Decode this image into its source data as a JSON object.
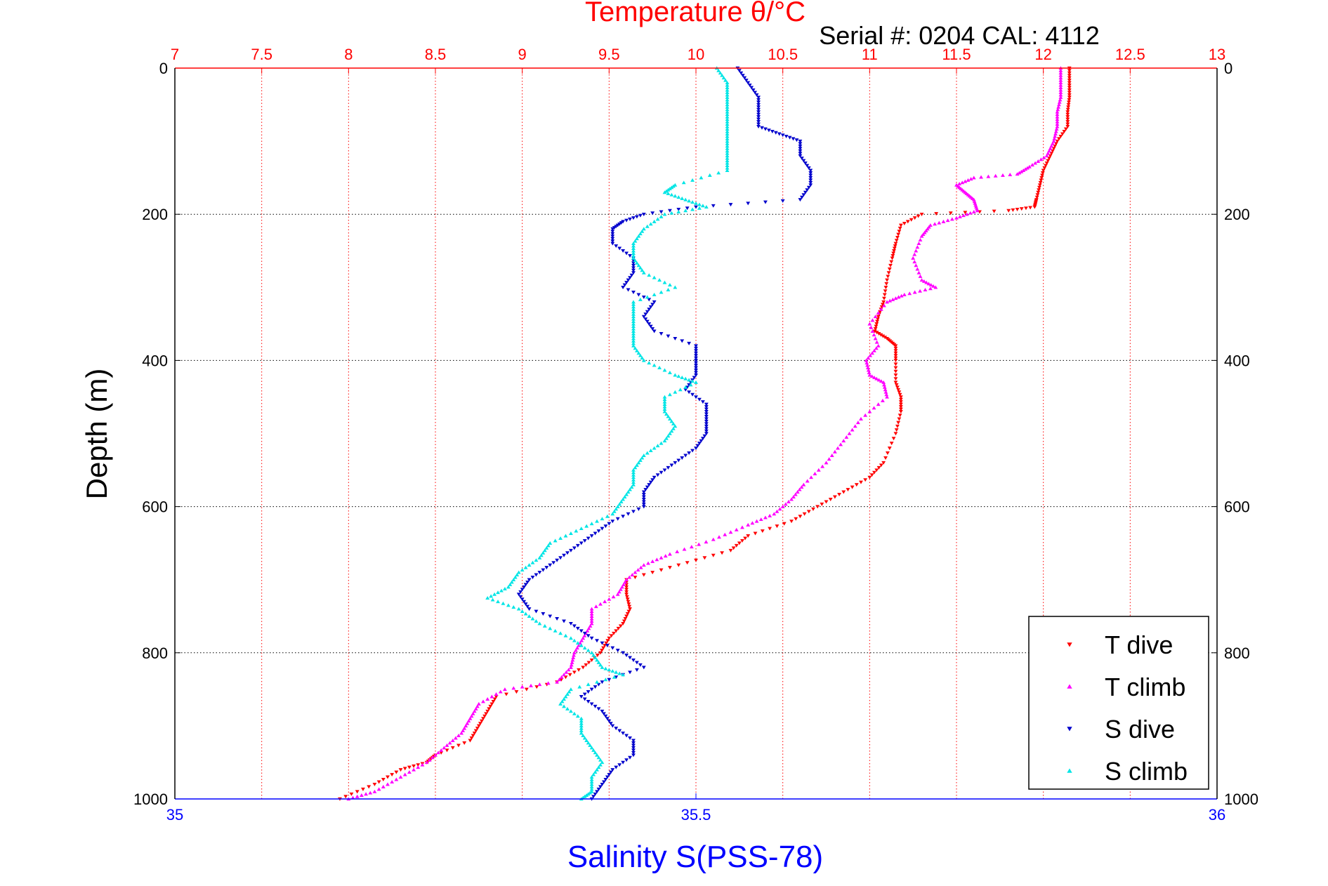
{
  "chart_data": {
    "type": "scatter",
    "title_top": "Temperature θ/°C",
    "subtitle": "Serial #: 0204  CAL: 4112",
    "xlabel_bottom": "Salinity S(PSS-78)",
    "ylabel": "Depth (m)",
    "x_top_ticks": [
      "7",
      "7.5",
      "8",
      "8.5",
      "9",
      "9.5",
      "10",
      "10.5",
      "11",
      "11.5",
      "12",
      "12.5",
      "13"
    ],
    "x_top_range": [
      7,
      13
    ],
    "x_bottom_ticks": [
      "35",
      "35.5",
      "36"
    ],
    "x_bottom_range": [
      35,
      36
    ],
    "y_ticks": [
      "0",
      "200",
      "400",
      "600",
      "800",
      "1000"
    ],
    "y_range": [
      0,
      1000
    ],
    "y_reversed": true,
    "grid": true,
    "legend_position": "bottom-right",
    "colors": {
      "t_dive": "#ff0000",
      "t_climb": "#ff00ff",
      "s_dive": "#0000cc",
      "s_climb": "#00e5e5"
    },
    "series": [
      {
        "name": "T dive",
        "axis": "top",
        "marker": "triangle-down",
        "color": "#ff0000",
        "points": [
          [
            12.15,
            0
          ],
          [
            12.15,
            20
          ],
          [
            12.15,
            40
          ],
          [
            12.14,
            60
          ],
          [
            12.14,
            80
          ],
          [
            12.08,
            100
          ],
          [
            12.04,
            120
          ],
          [
            12.0,
            140
          ],
          [
            11.98,
            160
          ],
          [
            11.96,
            180
          ],
          [
            11.95,
            190
          ],
          [
            11.8,
            195
          ],
          [
            11.3,
            200
          ],
          [
            11.18,
            215
          ],
          [
            11.15,
            240
          ],
          [
            11.13,
            260
          ],
          [
            11.1,
            290
          ],
          [
            11.08,
            320
          ],
          [
            11.05,
            340
          ],
          [
            11.03,
            360
          ],
          [
            11.1,
            370
          ],
          [
            11.15,
            380
          ],
          [
            11.15,
            400
          ],
          [
            11.15,
            430
          ],
          [
            11.18,
            450
          ],
          [
            11.18,
            470
          ],
          [
            11.15,
            500
          ],
          [
            11.08,
            540
          ],
          [
            11.0,
            560
          ],
          [
            10.85,
            580
          ],
          [
            10.7,
            600
          ],
          [
            10.55,
            620
          ],
          [
            10.3,
            640
          ],
          [
            10.2,
            660
          ],
          [
            9.9,
            680
          ],
          [
            9.6,
            700
          ],
          [
            9.6,
            720
          ],
          [
            9.62,
            740
          ],
          [
            9.58,
            760
          ],
          [
            9.5,
            780
          ],
          [
            9.45,
            800
          ],
          [
            9.35,
            820
          ],
          [
            9.2,
            840
          ],
          [
            8.85,
            860
          ],
          [
            8.8,
            880
          ],
          [
            8.75,
            900
          ],
          [
            8.7,
            920
          ],
          [
            8.5,
            940
          ],
          [
            8.45,
            950
          ],
          [
            8.3,
            960
          ],
          [
            8.15,
            980
          ],
          [
            7.95,
            1000
          ]
        ]
      },
      {
        "name": "T climb",
        "axis": "top",
        "marker": "triangle-up",
        "color": "#ff00ff",
        "points": [
          [
            12.1,
            0
          ],
          [
            12.1,
            20
          ],
          [
            12.1,
            40
          ],
          [
            12.08,
            60
          ],
          [
            12.08,
            80
          ],
          [
            12.06,
            100
          ],
          [
            12.02,
            120
          ],
          [
            11.92,
            135
          ],
          [
            11.85,
            145
          ],
          [
            11.6,
            150
          ],
          [
            11.5,
            160
          ],
          [
            11.55,
            170
          ],
          [
            11.6,
            180
          ],
          [
            11.62,
            195
          ],
          [
            11.5,
            205
          ],
          [
            11.35,
            215
          ],
          [
            11.3,
            230
          ],
          [
            11.25,
            260
          ],
          [
            11.3,
            290
          ],
          [
            11.38,
            300
          ],
          [
            11.2,
            310
          ],
          [
            11.1,
            320
          ],
          [
            11.0,
            350
          ],
          [
            11.05,
            380
          ],
          [
            10.98,
            400
          ],
          [
            11.0,
            420
          ],
          [
            11.08,
            430
          ],
          [
            11.1,
            450
          ],
          [
            10.95,
            480
          ],
          [
            10.85,
            510
          ],
          [
            10.75,
            540
          ],
          [
            10.62,
            570
          ],
          [
            10.55,
            590
          ],
          [
            10.45,
            610
          ],
          [
            10.3,
            625
          ],
          [
            10.1,
            645
          ],
          [
            9.85,
            665
          ],
          [
            9.7,
            680
          ],
          [
            9.6,
            700
          ],
          [
            9.55,
            720
          ],
          [
            9.4,
            740
          ],
          [
            9.4,
            760
          ],
          [
            9.35,
            780
          ],
          [
            9.3,
            800
          ],
          [
            9.28,
            820
          ],
          [
            9.2,
            840
          ],
          [
            8.9,
            850
          ],
          [
            8.75,
            870
          ],
          [
            8.7,
            890
          ],
          [
            8.65,
            910
          ],
          [
            8.55,
            930
          ],
          [
            8.45,
            950
          ],
          [
            8.3,
            970
          ],
          [
            8.15,
            990
          ],
          [
            8.0,
            1000
          ]
        ]
      },
      {
        "name": "S dive",
        "axis": "bottom",
        "marker": "triangle-down",
        "color": "#0000cc",
        "points": [
          [
            35.54,
            0
          ],
          [
            35.55,
            20
          ],
          [
            35.56,
            40
          ],
          [
            35.56,
            60
          ],
          [
            35.56,
            80
          ],
          [
            35.58,
            90
          ],
          [
            35.6,
            100
          ],
          [
            35.6,
            120
          ],
          [
            35.61,
            140
          ],
          [
            35.61,
            160
          ],
          [
            35.6,
            180
          ],
          [
            35.5,
            190
          ],
          [
            35.45,
            200
          ],
          [
            35.43,
            210
          ],
          [
            35.42,
            220
          ],
          [
            35.42,
            240
          ],
          [
            35.44,
            260
          ],
          [
            35.44,
            280
          ],
          [
            35.43,
            300
          ],
          [
            35.46,
            320
          ],
          [
            35.45,
            340
          ],
          [
            35.46,
            360
          ],
          [
            35.5,
            380
          ],
          [
            35.5,
            400
          ],
          [
            35.5,
            420
          ],
          [
            35.49,
            440
          ],
          [
            35.51,
            460
          ],
          [
            35.51,
            480
          ],
          [
            35.51,
            500
          ],
          [
            35.5,
            520
          ],
          [
            35.48,
            540
          ],
          [
            35.46,
            560
          ],
          [
            35.45,
            580
          ],
          [
            35.45,
            600
          ],
          [
            35.42,
            620
          ],
          [
            35.4,
            640
          ],
          [
            35.38,
            660
          ],
          [
            35.36,
            680
          ],
          [
            35.34,
            700
          ],
          [
            35.33,
            720
          ],
          [
            35.34,
            740
          ],
          [
            35.38,
            760
          ],
          [
            35.4,
            780
          ],
          [
            35.43,
            800
          ],
          [
            35.45,
            820
          ],
          [
            35.41,
            840
          ],
          [
            35.39,
            860
          ],
          [
            35.41,
            880
          ],
          [
            35.42,
            900
          ],
          [
            35.44,
            920
          ],
          [
            35.44,
            940
          ],
          [
            35.42,
            960
          ],
          [
            35.41,
            980
          ],
          [
            35.4,
            1000
          ]
        ]
      },
      {
        "name": "S climb",
        "axis": "bottom",
        "marker": "triangle-up",
        "color": "#00e5e5",
        "points": [
          [
            35.52,
            0
          ],
          [
            35.53,
            20
          ],
          [
            35.53,
            40
          ],
          [
            35.53,
            60
          ],
          [
            35.53,
            80
          ],
          [
            35.53,
            100
          ],
          [
            35.53,
            120
          ],
          [
            35.53,
            140
          ],
          [
            35.48,
            160
          ],
          [
            35.47,
            170
          ],
          [
            35.49,
            180
          ],
          [
            35.51,
            190
          ],
          [
            35.47,
            200
          ],
          [
            35.45,
            220
          ],
          [
            35.44,
            240
          ],
          [
            35.44,
            260
          ],
          [
            35.45,
            280
          ],
          [
            35.48,
            300
          ],
          [
            35.44,
            320
          ],
          [
            35.44,
            340
          ],
          [
            35.44,
            360
          ],
          [
            35.44,
            380
          ],
          [
            35.45,
            400
          ],
          [
            35.48,
            420
          ],
          [
            35.5,
            430
          ],
          [
            35.47,
            450
          ],
          [
            35.47,
            470
          ],
          [
            35.48,
            490
          ],
          [
            35.47,
            510
          ],
          [
            35.45,
            530
          ],
          [
            35.44,
            550
          ],
          [
            35.44,
            570
          ],
          [
            35.43,
            590
          ],
          [
            35.42,
            610
          ],
          [
            35.39,
            630
          ],
          [
            35.36,
            650
          ],
          [
            35.35,
            670
          ],
          [
            35.33,
            690
          ],
          [
            35.32,
            710
          ],
          [
            35.3,
            725
          ],
          [
            35.33,
            740
          ],
          [
            35.35,
            760
          ],
          [
            35.38,
            780
          ],
          [
            35.4,
            800
          ],
          [
            35.41,
            820
          ],
          [
            35.43,
            830
          ],
          [
            35.38,
            850
          ],
          [
            35.37,
            870
          ],
          [
            35.39,
            890
          ],
          [
            35.39,
            910
          ],
          [
            35.4,
            930
          ],
          [
            35.41,
            950
          ],
          [
            35.4,
            970
          ],
          [
            35.4,
            990
          ],
          [
            35.39,
            1000
          ]
        ]
      }
    ]
  }
}
